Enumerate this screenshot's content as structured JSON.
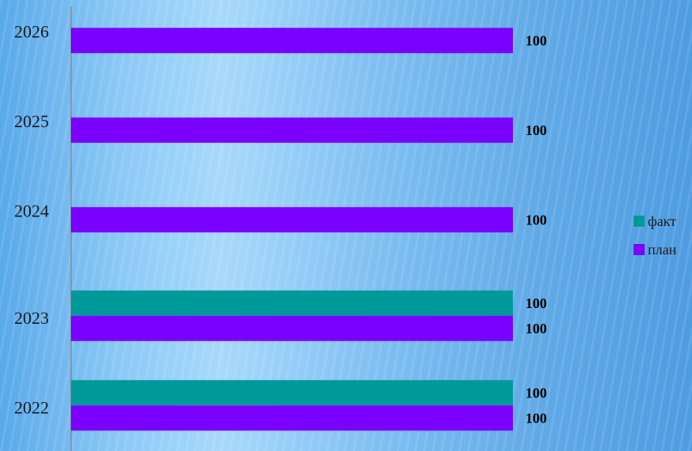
{
  "chart_data": {
    "type": "bar",
    "orientation": "horizontal",
    "categories": [
      "2022",
      "2023",
      "2024",
      "2025",
      "2026"
    ],
    "series": [
      {
        "name": "факт",
        "color": "#009999",
        "values": [
          100,
          100,
          null,
          null,
          null
        ]
      },
      {
        "name": "план",
        "color": "#7a00ff",
        "values": [
          100,
          100,
          100,
          100,
          100
        ]
      }
    ],
    "xlim": [
      0,
      100
    ],
    "data_labels": true,
    "legend_position": "right",
    "grid": false
  }
}
